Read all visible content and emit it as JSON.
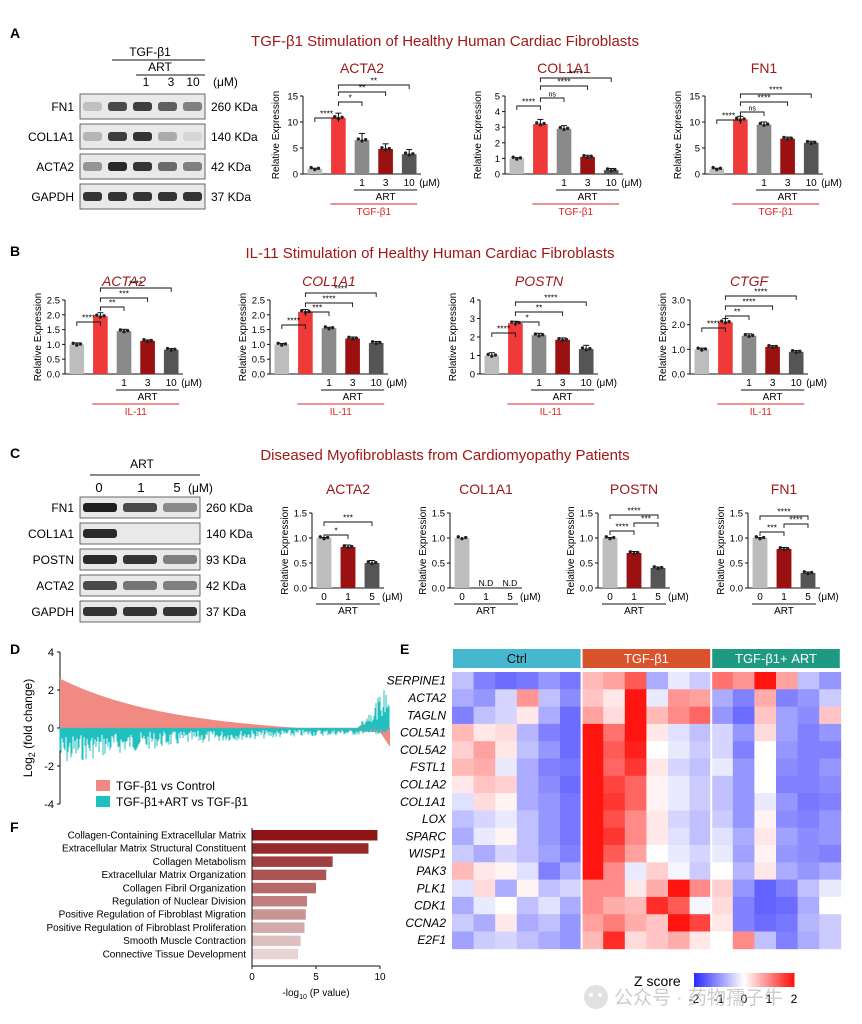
{
  "colors": {
    "ctrl": "#bdbdbd",
    "tgf": "#f03a3a",
    "art1": "#8a8a8a",
    "art3": "#9b1010",
    "art10": "#555555",
    "title_red": "#a01818",
    "label_red": "#e02020",
    "ctrl_bar": "#45b8cf",
    "tgf_bar": "#d9532c",
    "combo_bar": "#1f9a82",
    "d_up": "#f08a82",
    "d_down": "#20c0c0"
  },
  "panelA": {
    "letter": "A",
    "title": "TGF-β1 Stimulation of Healthy Human Cardiac Fibroblasts",
    "blot": {
      "tgf_label": "TGF-β1",
      "art_label": "ART",
      "doses": [
        "1",
        "3",
        "10"
      ],
      "unit": "(μM)",
      "rows": [
        {
          "name": "FN1",
          "kda": "260 KDa"
        },
        {
          "name": "COL1A1",
          "kda": "140 KDa"
        },
        {
          "name": "ACTA2",
          "kda": "42 KDa"
        },
        {
          "name": "GAPDH",
          "kda": "37 KDa"
        }
      ]
    },
    "xlab": {
      "doses": [
        "1",
        "3",
        "10"
      ],
      "unit": "(μM)",
      "art": "ART",
      "stim": "TGF-β1"
    }
  },
  "panelB": {
    "letter": "B",
    "title": "IL-11 Stimulation of Healthy Human Cardiac Fibroblasts",
    "xlab": {
      "doses": [
        "1",
        "3",
        "10"
      ],
      "unit": "(μM)",
      "art": "ART",
      "stim": "IL-11"
    }
  },
  "panelC": {
    "letter": "C",
    "title": "Diseased Myofibroblasts from Cardiomyopathy Patients",
    "blot": {
      "art_label": "ART",
      "doses": [
        "0",
        "1",
        "5"
      ],
      "unit": "(μM)",
      "rows": [
        {
          "name": "FN1",
          "kda": "260 KDa"
        },
        {
          "name": "COL1A1",
          "kda": "140 KDa"
        },
        {
          "name": "POSTN",
          "kda": "93 KDa"
        },
        {
          "name": "ACTA2",
          "kda": "42 KDa"
        },
        {
          "name": "GAPDH",
          "kda": "37 KDa"
        }
      ]
    },
    "xlab": {
      "doses": [
        "0",
        "1",
        "5"
      ],
      "unit": "(μM)",
      "art": "ART"
    }
  },
  "panelD": {
    "letter": "D",
    "legend": [
      "TGF-β1 vs Control",
      "TGF-β1+ART vs TGF-β1"
    ]
  },
  "panelE": {
    "letter": "E",
    "groups": [
      "Ctrl",
      "TGF-β1",
      "TGF-β1+ ART"
    ],
    "zscore_label": "Z score",
    "zscore_ticks": [
      "-2",
      "-1",
      "0",
      "1",
      "2"
    ]
  },
  "panelF": {
    "letter": "F"
  },
  "watermark": "公众号 · 药物孺子牛",
  "chart_data": [
    {
      "panel": "A",
      "type": "bar",
      "title": "ACTA2",
      "ylabel": "Relative Expression",
      "ylim": [
        0,
        15
      ],
      "yticks": [
        0,
        5,
        10,
        15
      ],
      "categories": [
        "Control",
        "TGF-β1",
        "TGF-β1+ART 1",
        "TGF-β1+ART 3",
        "TGF-β1+ART 10"
      ],
      "values": [
        1,
        10.8,
        6.5,
        4.8,
        3.8
      ],
      "errors": [
        0.1,
        0.9,
        1.3,
        1.0,
        0.9
      ],
      "significance": [
        {
          "from": 0,
          "to": 1,
          "label": "****"
        },
        {
          "from": 1,
          "to": 2,
          "label": "*"
        },
        {
          "from": 1,
          "to": 3,
          "label": "**"
        },
        {
          "from": 1,
          "to": 4,
          "label": "**"
        }
      ]
    },
    {
      "panel": "A",
      "type": "bar",
      "title": "COL1A1",
      "ylabel": "Relative Expression",
      "ylim": [
        0,
        5
      ],
      "yticks": [
        0,
        1,
        2,
        3,
        4,
        5
      ],
      "categories": [
        "Control",
        "TGF-β1",
        "TGF-β1+ART 1",
        "TGF-β1+ART 3",
        "TGF-β1+ART 10"
      ],
      "values": [
        1,
        3.2,
        2.9,
        1.1,
        0.25
      ],
      "errors": [
        0.05,
        0.3,
        0.2,
        0.1,
        0.1
      ],
      "significance": [
        {
          "from": 0,
          "to": 1,
          "label": "****"
        },
        {
          "from": 1,
          "to": 2,
          "label": "ns"
        },
        {
          "from": 1,
          "to": 3,
          "label": "****"
        },
        {
          "from": 1,
          "to": 4,
          "label": "****"
        }
      ]
    },
    {
      "panel": "A",
      "type": "bar",
      "title": "FN1",
      "ylabel": "Relative Expression",
      "ylim": [
        0,
        15
      ],
      "yticks": [
        0,
        5,
        10,
        15
      ],
      "categories": [
        "Control",
        "TGF-β1",
        "TGF-β1+ART 1",
        "TGF-β1+ART 3",
        "TGF-β1+ART 10"
      ],
      "values": [
        1,
        10.5,
        9.5,
        6.8,
        6.0
      ],
      "errors": [
        0.1,
        0.6,
        0.5,
        0.3,
        0.3
      ],
      "significance": [
        {
          "from": 0,
          "to": 1,
          "label": "****"
        },
        {
          "from": 1,
          "to": 2,
          "label": "ns"
        },
        {
          "from": 1,
          "to": 3,
          "label": "****"
        },
        {
          "from": 1,
          "to": 4,
          "label": "****"
        }
      ]
    },
    {
      "panel": "B",
      "type": "bar",
      "title": "ACTA2",
      "ylabel": "Relative Expression",
      "ylim": [
        0,
        2.5
      ],
      "yticks": [
        0,
        0.5,
        1.0,
        1.5,
        2.0,
        2.5
      ],
      "categories": [
        "Control",
        "IL-11",
        "IL-11+ART 1",
        "IL-11+ART 3",
        "IL-11+ART 10"
      ],
      "values": [
        1.0,
        1.95,
        1.45,
        1.12,
        0.82
      ],
      "errors": [
        0.05,
        0.12,
        0.06,
        0.03,
        0.04
      ],
      "significance": [
        {
          "from": 0,
          "to": 1,
          "label": "****"
        },
        {
          "from": 1,
          "to": 2,
          "label": "**"
        },
        {
          "from": 1,
          "to": 3,
          "label": "***"
        },
        {
          "from": 1,
          "to": 4,
          "label": "****"
        }
      ]
    },
    {
      "panel": "B",
      "type": "bar",
      "title": "COL1A1",
      "ylabel": "Relative Expression",
      "ylim": [
        0,
        2.5
      ],
      "yticks": [
        0,
        0.5,
        1.0,
        1.5,
        2.0,
        2.5
      ],
      "categories": [
        "Control",
        "IL-11",
        "IL-11+ART 1",
        "IL-11+ART 3",
        "IL-11+ART 10"
      ],
      "values": [
        1.0,
        2.1,
        1.55,
        1.2,
        1.05
      ],
      "errors": [
        0.03,
        0.08,
        0.03,
        0.05,
        0.05
      ],
      "significance": [
        {
          "from": 0,
          "to": 1,
          "label": "****"
        },
        {
          "from": 1,
          "to": 2,
          "label": "***"
        },
        {
          "from": 1,
          "to": 3,
          "label": "****"
        },
        {
          "from": 1,
          "to": 4,
          "label": "****"
        }
      ]
    },
    {
      "panel": "B",
      "type": "bar",
      "title": "POSTN",
      "ylabel": "Relative Expression",
      "ylim": [
        0,
        4
      ],
      "yticks": [
        0,
        1,
        2,
        3,
        4
      ],
      "categories": [
        "Control",
        "IL-11",
        "IL-11+ART 1",
        "IL-11+ART 3",
        "IL-11+ART 10"
      ],
      "values": [
        1.0,
        2.75,
        2.1,
        1.85,
        1.35
      ],
      "errors": [
        0.15,
        0.1,
        0.1,
        0.1,
        0.2
      ],
      "significance": [
        {
          "from": 0,
          "to": 1,
          "label": "****"
        },
        {
          "from": 1,
          "to": 2,
          "label": "*"
        },
        {
          "from": 1,
          "to": 3,
          "label": "**"
        },
        {
          "from": 1,
          "to": 4,
          "label": "****"
        }
      ]
    },
    {
      "panel": "B",
      "type": "bar",
      "title": "CTGF",
      "ylabel": "Relative Expression",
      "ylim": [
        0,
        3
      ],
      "yticks": [
        0,
        1,
        2,
        3
      ],
      "categories": [
        "Control",
        "IL-11",
        "IL-11+ART 1",
        "IL-11+ART 3",
        "IL-11+ART 10"
      ],
      "values": [
        1.0,
        2.1,
        1.55,
        1.1,
        0.9
      ],
      "errors": [
        0.05,
        0.15,
        0.08,
        0.05,
        0.05
      ],
      "significance": [
        {
          "from": 0,
          "to": 1,
          "label": "****"
        },
        {
          "from": 1,
          "to": 2,
          "label": "**"
        },
        {
          "from": 1,
          "to": 3,
          "label": "****"
        },
        {
          "from": 1,
          "to": 4,
          "label": "****"
        }
      ]
    },
    {
      "panel": "C",
      "type": "bar",
      "title": "ACTA2",
      "ylabel": "Relative Expression",
      "ylim": [
        0,
        1.5
      ],
      "yticks": [
        0,
        0.5,
        1.0,
        1.5
      ],
      "categories": [
        "0",
        "1",
        "5"
      ],
      "values": [
        1.0,
        0.82,
        0.5
      ],
      "errors": [
        0.01,
        0.04,
        0.05
      ],
      "significance": [
        {
          "from": 0,
          "to": 1,
          "label": "*"
        },
        {
          "from": 0,
          "to": 2,
          "label": "***"
        }
      ]
    },
    {
      "panel": "C",
      "type": "bar",
      "title": "COL1A1",
      "ylabel": "Relative Expression",
      "ylim": [
        0,
        1.5
      ],
      "yticks": [
        0,
        0.5,
        1.0,
        1.5
      ],
      "categories": [
        "0",
        "1",
        "5"
      ],
      "values": [
        1.0,
        null,
        null
      ],
      "bar_labels": [
        "",
        "N.D",
        "N.D"
      ],
      "errors": [
        0.0,
        0,
        0
      ],
      "significance": []
    },
    {
      "panel": "C",
      "type": "bar",
      "title": "POSTN",
      "ylabel": "Relative Expression",
      "ylim": [
        0,
        1.5
      ],
      "yticks": [
        0,
        0.5,
        1.0,
        1.5
      ],
      "categories": [
        "0",
        "1",
        "5"
      ],
      "values": [
        1.0,
        0.7,
        0.4
      ],
      "errors": [
        0.01,
        0.03,
        0.02
      ],
      "significance": [
        {
          "from": 0,
          "to": 1,
          "label": "****"
        },
        {
          "from": 1,
          "to": 2,
          "label": "***"
        },
        {
          "from": 0,
          "to": 2,
          "label": "****"
        }
      ]
    },
    {
      "panel": "C",
      "type": "bar",
      "title": "FN1",
      "ylabel": "Relative Expression",
      "ylim": [
        0,
        1.5
      ],
      "yticks": [
        0,
        0.5,
        1.0,
        1.5
      ],
      "categories": [
        "0",
        "1",
        "5"
      ],
      "values": [
        1.0,
        0.78,
        0.3
      ],
      "errors": [
        0.01,
        0.03,
        0.02
      ],
      "significance": [
        {
          "from": 0,
          "to": 1,
          "label": "***"
        },
        {
          "from": 1,
          "to": 2,
          "label": "****"
        },
        {
          "from": 0,
          "to": 2,
          "label": "****"
        }
      ]
    },
    {
      "panel": "D",
      "type": "bar",
      "ylabel": "Log2 (fold change)",
      "ylim": [
        -4,
        4
      ],
      "yticks": [
        -4,
        -2,
        0,
        2,
        4
      ],
      "series": [
        {
          "name": "TGF-β1 vs Control",
          "description": "sorted fold changes, ~2.6 max to ~-0.8 min"
        },
        {
          "name": "TGF-β1+ART vs TGF-β1",
          "description": "opposite direction, noisy"
        }
      ]
    },
    {
      "panel": "E",
      "type": "heatmap",
      "rows": [
        "SERPINE1",
        "ACTA2",
        "TAGLN",
        "COL5A1",
        "COL5A2",
        "FSTL1",
        "COL1A2",
        "COL1A1",
        "LOX",
        "SPARC",
        "WISP1",
        "PAK3",
        "PLK1",
        "CDK1",
        "CCNA2",
        "E2F1"
      ],
      "columns": [
        "Ctrl",
        "Ctrl",
        "Ctrl",
        "Ctrl",
        "Ctrl",
        "Ctrl",
        "TGF-β1",
        "TGF-β1",
        "TGF-β1",
        "TGF-β1",
        "TGF-β1",
        "TGF-β1",
        "TGF-β1+ ART",
        "TGF-β1+ ART",
        "TGF-β1+ ART",
        "TGF-β1+ ART",
        "TGF-β1+ ART",
        "TGF-β1+ ART"
      ],
      "values": [
        [
          -0.6,
          -1.2,
          -1.4,
          -1.3,
          -1.0,
          -1.3,
          0.6,
          0.8,
          1.4,
          -0.8,
          -0.2,
          -0.5,
          1.2,
          0.9,
          2.2,
          0.8,
          -0.6,
          -1.0
        ],
        [
          -0.8,
          -1.0,
          -0.4,
          0.9,
          -0.6,
          -1.1,
          0.5,
          0.2,
          2.0,
          -0.2,
          0.9,
          0.8,
          -0.8,
          -1.2,
          0.7,
          -1.2,
          -1.0,
          -0.5
        ],
        [
          -1.2,
          -0.6,
          -0.4,
          0.2,
          -0.8,
          -1.4,
          0.8,
          0.3,
          2.0,
          0.6,
          1.0,
          1.3,
          -1.0,
          -1.4,
          0.5,
          -0.9,
          -1.1,
          0.5
        ],
        [
          0.6,
          0.2,
          0.3,
          -0.7,
          -1.2,
          -1.4,
          2.0,
          1.2,
          2.0,
          0.2,
          -0.3,
          -0.6,
          -0.4,
          -1.0,
          0.3,
          -0.9,
          -1.2,
          -1.0
        ],
        [
          0.4,
          0.8,
          0.2,
          -0.6,
          -1.0,
          -1.4,
          2.0,
          1.4,
          1.9,
          0.0,
          -0.2,
          -0.5,
          -0.4,
          -1.2,
          0.0,
          -1.0,
          -1.2,
          -1.2
        ],
        [
          0.6,
          0.7,
          -0.2,
          -0.8,
          -1.2,
          -1.3,
          2.1,
          1.3,
          1.7,
          0.2,
          -0.4,
          -0.6,
          -0.2,
          -1.0,
          0.0,
          -1.1,
          -1.2,
          -1.0
        ],
        [
          0.2,
          0.5,
          0.4,
          -0.8,
          -1.1,
          -1.4,
          2.2,
          1.6,
          1.3,
          0.1,
          -0.2,
          -0.5,
          -0.6,
          -1.0,
          0.0,
          -1.2,
          -1.2,
          -1.1
        ],
        [
          -0.3,
          0.3,
          0.1,
          -0.8,
          -1.0,
          -1.3,
          2.2,
          1.7,
          1.3,
          0.1,
          -0.2,
          -0.5,
          -0.6,
          -1.0,
          -0.2,
          -1.0,
          -1.3,
          -1.2
        ],
        [
          -0.6,
          -0.4,
          -0.2,
          -0.6,
          -1.0,
          -1.3,
          2.1,
          1.5,
          1.0,
          0.2,
          -0.4,
          -0.6,
          -0.5,
          -1.0,
          0.1,
          -1.1,
          -1.2,
          -1.0
        ],
        [
          -0.8,
          -0.2,
          0.1,
          -0.6,
          -1.0,
          -1.3,
          2.0,
          1.7,
          1.0,
          0.2,
          -0.3,
          -0.6,
          -0.3,
          -0.8,
          0.2,
          -0.9,
          -1.1,
          -1.0
        ],
        [
          -0.5,
          -0.8,
          -0.4,
          -0.6,
          -0.9,
          -1.2,
          2.1,
          1.4,
          0.8,
          0.0,
          -0.2,
          -0.4,
          -0.2,
          -0.9,
          0.1,
          -1.0,
          -1.1,
          -1.2
        ],
        [
          0.6,
          0.2,
          0.1,
          -0.3,
          -1.2,
          -0.8,
          2.2,
          1.0,
          -0.2,
          0.4,
          -0.1,
          -0.5,
          0.0,
          -0.7,
          0.2,
          -0.8,
          -1.0,
          -0.8
        ],
        [
          -0.3,
          0.3,
          -0.8,
          0.1,
          -0.6,
          -0.4,
          1.0,
          1.0,
          0.2,
          0.7,
          2.0,
          1.0,
          0.4,
          -1.0,
          -1.5,
          -1.2,
          -0.6,
          -0.2
        ],
        [
          -0.8,
          -0.2,
          0.0,
          -0.6,
          -0.3,
          -0.8,
          1.0,
          0.7,
          0.6,
          1.8,
          1.4,
          -0.1,
          0.3,
          -1.2,
          -1.5,
          -1.4,
          -0.8,
          0.0
        ],
        [
          -0.5,
          -0.8,
          0.2,
          -0.8,
          -0.6,
          -1.0,
          0.8,
          1.1,
          0.7,
          0.5,
          2.0,
          1.6,
          0.2,
          -1.2,
          -1.4,
          -1.3,
          -0.7,
          -0.5
        ],
        [
          -0.9,
          -0.5,
          -0.4,
          -0.6,
          -0.8,
          -1.0,
          0.6,
          1.8,
          0.3,
          0.5,
          0.7,
          0.2,
          0.0,
          1.0,
          -0.6,
          -1.2,
          -0.8,
          -0.5
        ]
      ],
      "zlim": [
        -2,
        2
      ]
    },
    {
      "panel": "F",
      "type": "bar",
      "categories": [
        "Collagen-Containing Extracellular Matrix",
        "Extracellular Matrix Structural Constituent",
        "Collagen Metabolism",
        "Extracellular Matrix Organization",
        "Collagen Fibril Organization",
        "Regulation of Nuclear Division",
        "Positive Regulation of Fibroblast Migration",
        "Positive Regulation of Fibroblast Proliferation",
        "Smooth Muscle Contraction",
        "Connective Tissue Development"
      ],
      "values": [
        9.8,
        9.1,
        6.3,
        5.8,
        5.0,
        4.3,
        4.2,
        4.1,
        3.8,
        3.6
      ],
      "xlabel": "-log10 (P value)",
      "xlim": [
        0,
        10
      ],
      "xticks": [
        0,
        5,
        10
      ]
    }
  ]
}
